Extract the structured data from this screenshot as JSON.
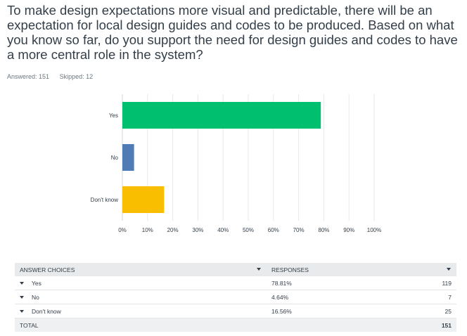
{
  "question": "To make design expectations more visual and predictable, there will be an expectation for local design guides and codes to be produced. Based on what you know so far, do you support the need for design guides and codes to have a more central role in the system?",
  "meta": {
    "answered": "Answered: 151",
    "skipped": "Skipped: 12"
  },
  "chart_data": {
    "type": "bar",
    "orientation": "horizontal",
    "categories": [
      "Yes",
      "No",
      "Don't know"
    ],
    "values": [
      78.81,
      4.64,
      16.56
    ],
    "colors": [
      "#00bf6f",
      "#507cb6",
      "#f9be00"
    ],
    "xlim": [
      0,
      100
    ],
    "xticks": [
      "0%",
      "10%",
      "20%",
      "30%",
      "40%",
      "50%",
      "60%",
      "70%",
      "80%",
      "90%",
      "100%"
    ],
    "grid": true
  },
  "table": {
    "header_choices": "ANSWER CHOICES",
    "header_responses": "RESPONSES",
    "rows": [
      {
        "choice": "Yes",
        "percent": "78.81%",
        "count": "119"
      },
      {
        "choice": "No",
        "percent": "4.64%",
        "count": "7"
      },
      {
        "choice": "Don't know",
        "percent": "16.56%",
        "count": "25"
      }
    ],
    "total_label": "TOTAL",
    "total_count": "151"
  }
}
